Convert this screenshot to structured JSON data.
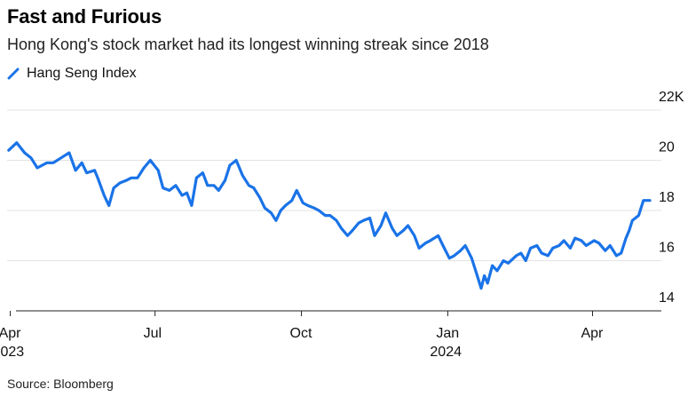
{
  "title": "Fast and Furious",
  "subtitle": "Hong Kong's stock market had its longest winning streak since 2018",
  "source": "Source: Bloomberg",
  "colors": {
    "series": "#1a73e8",
    "grid": "#e3e3e3",
    "axis": "#222222"
  },
  "chart_data": {
    "type": "line",
    "legend": "top-left",
    "grid": true,
    "ylim": [
      14,
      22
    ],
    "xlim": [
      "2023-03-30",
      "2024-05-31"
    ],
    "y_ticks": [
      {
        "value": 22,
        "label": "22K"
      },
      {
        "value": 20,
        "label": "20"
      },
      {
        "value": 18,
        "label": "18"
      },
      {
        "value": 16,
        "label": "16"
      },
      {
        "value": 14,
        "label": "14"
      }
    ],
    "x_ticks": [
      {
        "date": "2023-04-01",
        "label": "Apr",
        "year": "2023"
      },
      {
        "date": "2023-07-01",
        "label": "Jul",
        "year": ""
      },
      {
        "date": "2023-10-01",
        "label": "Oct",
        "year": ""
      },
      {
        "date": "2024-01-01",
        "label": "Jan",
        "year": "2024"
      },
      {
        "date": "2024-04-01",
        "label": "Apr",
        "year": ""
      }
    ],
    "series": [
      {
        "name": "Hang Seng Index",
        "points": [
          [
            "2023-03-31",
            20.4
          ],
          [
            "2023-04-05",
            20.7
          ],
          [
            "2023-04-10",
            20.3
          ],
          [
            "2023-04-14",
            20.1
          ],
          [
            "2023-04-18",
            19.7
          ],
          [
            "2023-04-24",
            19.9
          ],
          [
            "2023-04-28",
            19.9
          ],
          [
            "2023-05-03",
            20.1
          ],
          [
            "2023-05-08",
            20.3
          ],
          [
            "2023-05-12",
            19.6
          ],
          [
            "2023-05-16",
            19.9
          ],
          [
            "2023-05-19",
            19.5
          ],
          [
            "2023-05-24",
            19.6
          ],
          [
            "2023-05-26",
            19.3
          ],
          [
            "2023-05-30",
            18.6
          ],
          [
            "2023-06-02",
            18.2
          ],
          [
            "2023-06-05",
            18.9
          ],
          [
            "2023-06-09",
            19.1
          ],
          [
            "2023-06-13",
            19.2
          ],
          [
            "2023-06-16",
            19.3
          ],
          [
            "2023-06-20",
            19.3
          ],
          [
            "2023-06-24",
            19.7
          ],
          [
            "2023-06-28",
            20.0
          ],
          [
            "2023-07-03",
            19.6
          ],
          [
            "2023-07-06",
            18.9
          ],
          [
            "2023-07-10",
            18.8
          ],
          [
            "2023-07-14",
            19.0
          ],
          [
            "2023-07-18",
            18.6
          ],
          [
            "2023-07-21",
            18.7
          ],
          [
            "2023-07-24",
            18.2
          ],
          [
            "2023-07-27",
            19.3
          ],
          [
            "2023-07-31",
            19.5
          ],
          [
            "2023-08-03",
            19.0
          ],
          [
            "2023-08-07",
            19.0
          ],
          [
            "2023-08-10",
            18.8
          ],
          [
            "2023-08-14",
            19.2
          ],
          [
            "2023-08-17",
            19.8
          ],
          [
            "2023-08-21",
            20.0
          ],
          [
            "2023-08-25",
            19.4
          ],
          [
            "2023-08-29",
            19.0
          ],
          [
            "2023-09-01",
            18.9
          ],
          [
            "2023-09-05",
            18.5
          ],
          [
            "2023-09-08",
            18.1
          ],
          [
            "2023-09-12",
            17.9
          ],
          [
            "2023-09-15",
            17.6
          ],
          [
            "2023-09-18",
            18.0
          ],
          [
            "2023-09-21",
            18.2
          ],
          [
            "2023-09-25",
            18.4
          ],
          [
            "2023-09-28",
            18.8
          ],
          [
            "2023-10-02",
            18.3
          ],
          [
            "2023-10-05",
            18.2
          ],
          [
            "2023-10-09",
            18.1
          ],
          [
            "2023-10-12",
            18.0
          ],
          [
            "2023-10-16",
            17.8
          ],
          [
            "2023-10-19",
            17.8
          ],
          [
            "2023-10-23",
            17.6
          ],
          [
            "2023-10-26",
            17.3
          ],
          [
            "2023-10-30",
            17.0
          ],
          [
            "2023-11-02",
            17.2
          ],
          [
            "2023-11-06",
            17.5
          ],
          [
            "2023-11-09",
            17.6
          ],
          [
            "2023-11-13",
            17.7
          ],
          [
            "2023-11-16",
            17.0
          ],
          [
            "2023-11-20",
            17.4
          ],
          [
            "2023-11-23",
            17.9
          ],
          [
            "2023-11-27",
            17.3
          ],
          [
            "2023-11-30",
            17.0
          ],
          [
            "2023-12-04",
            17.2
          ],
          [
            "2023-12-07",
            17.4
          ],
          [
            "2023-12-11",
            17.0
          ],
          [
            "2023-12-14",
            16.5
          ],
          [
            "2023-12-18",
            16.7
          ],
          [
            "2023-12-21",
            16.8
          ],
          [
            "2023-12-26",
            17.0
          ],
          [
            "2023-12-29",
            16.6
          ],
          [
            "2024-01-02",
            16.1
          ],
          [
            "2024-01-05",
            16.2
          ],
          [
            "2024-01-09",
            16.4
          ],
          [
            "2024-01-12",
            16.6
          ],
          [
            "2024-01-16",
            16.1
          ],
          [
            "2024-01-19",
            15.5
          ],
          [
            "2024-01-22",
            14.9
          ],
          [
            "2024-01-24",
            15.4
          ],
          [
            "2024-01-26",
            15.1
          ],
          [
            "2024-01-29",
            15.8
          ],
          [
            "2024-02-01",
            15.6
          ],
          [
            "2024-02-05",
            16.0
          ],
          [
            "2024-02-08",
            15.9
          ],
          [
            "2024-02-13",
            16.2
          ],
          [
            "2024-02-16",
            16.3
          ],
          [
            "2024-02-19",
            16.0
          ],
          [
            "2024-02-22",
            16.5
          ],
          [
            "2024-02-26",
            16.6
          ],
          [
            "2024-02-29",
            16.3
          ],
          [
            "2024-03-04",
            16.2
          ],
          [
            "2024-03-07",
            16.5
          ],
          [
            "2024-03-11",
            16.6
          ],
          [
            "2024-03-14",
            16.8
          ],
          [
            "2024-03-18",
            16.5
          ],
          [
            "2024-03-21",
            16.9
          ],
          [
            "2024-03-25",
            16.8
          ],
          [
            "2024-03-28",
            16.6
          ],
          [
            "2024-04-02",
            16.8
          ],
          [
            "2024-04-05",
            16.7
          ],
          [
            "2024-04-09",
            16.4
          ],
          [
            "2024-04-12",
            16.6
          ],
          [
            "2024-04-16",
            16.2
          ],
          [
            "2024-04-19",
            16.3
          ],
          [
            "2024-04-22",
            16.9
          ],
          [
            "2024-04-24",
            17.2
          ],
          [
            "2024-04-26",
            17.6
          ],
          [
            "2024-04-30",
            17.8
          ],
          [
            "2024-05-03",
            18.4
          ],
          [
            "2024-05-07",
            18.4
          ]
        ]
      }
    ]
  }
}
